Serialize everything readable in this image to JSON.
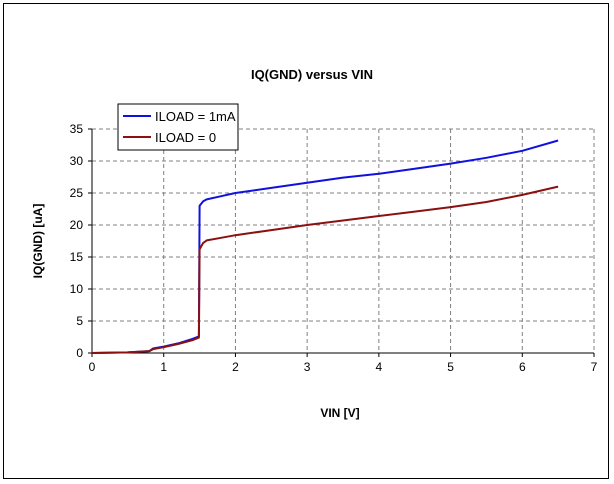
{
  "chart_data": {
    "type": "line",
    "title": "IQ(GND) versus VIN",
    "xlabel": "VIN [V]",
    "ylabel": "IQ(GND) [uA]",
    "xlim": [
      0,
      7
    ],
    "ylim": [
      0,
      35
    ],
    "xticks": [
      0,
      1,
      2,
      3,
      4,
      5,
      6,
      7
    ],
    "yticks": [
      0,
      5,
      10,
      15,
      20,
      25,
      30,
      35
    ],
    "grid": true,
    "legend": "top-left",
    "series": [
      {
        "name": "ILOAD = 1mA",
        "color": "#1010e0",
        "x": [
          0,
          0.5,
          0.8,
          0.85,
          1.0,
          1.2,
          1.4,
          1.49,
          1.5,
          1.55,
          1.6,
          1.8,
          2.0,
          2.5,
          3.0,
          3.5,
          4.0,
          4.5,
          5.0,
          5.5,
          6.0,
          6.5
        ],
        "y": [
          0,
          0.1,
          0.3,
          0.7,
          1.0,
          1.5,
          2.2,
          2.6,
          23.0,
          23.7,
          24.0,
          24.5,
          25.0,
          25.8,
          26.6,
          27.4,
          28.0,
          28.8,
          29.6,
          30.5,
          31.6,
          33.2
        ]
      },
      {
        "name": "ILOAD = 0",
        "color": "#8b1010",
        "x": [
          0,
          0.5,
          0.8,
          0.85,
          1.0,
          1.2,
          1.4,
          1.49,
          1.5,
          1.55,
          1.6,
          1.8,
          2.0,
          2.5,
          3.0,
          3.5,
          4.0,
          4.5,
          5.0,
          5.5,
          6.0,
          6.5
        ],
        "y": [
          0,
          0.1,
          0.3,
          0.6,
          0.9,
          1.4,
          2.0,
          2.4,
          16.2,
          17.2,
          17.6,
          18.0,
          18.4,
          19.2,
          20.0,
          20.7,
          21.4,
          22.1,
          22.8,
          23.6,
          24.7,
          26.0
        ]
      }
    ]
  }
}
